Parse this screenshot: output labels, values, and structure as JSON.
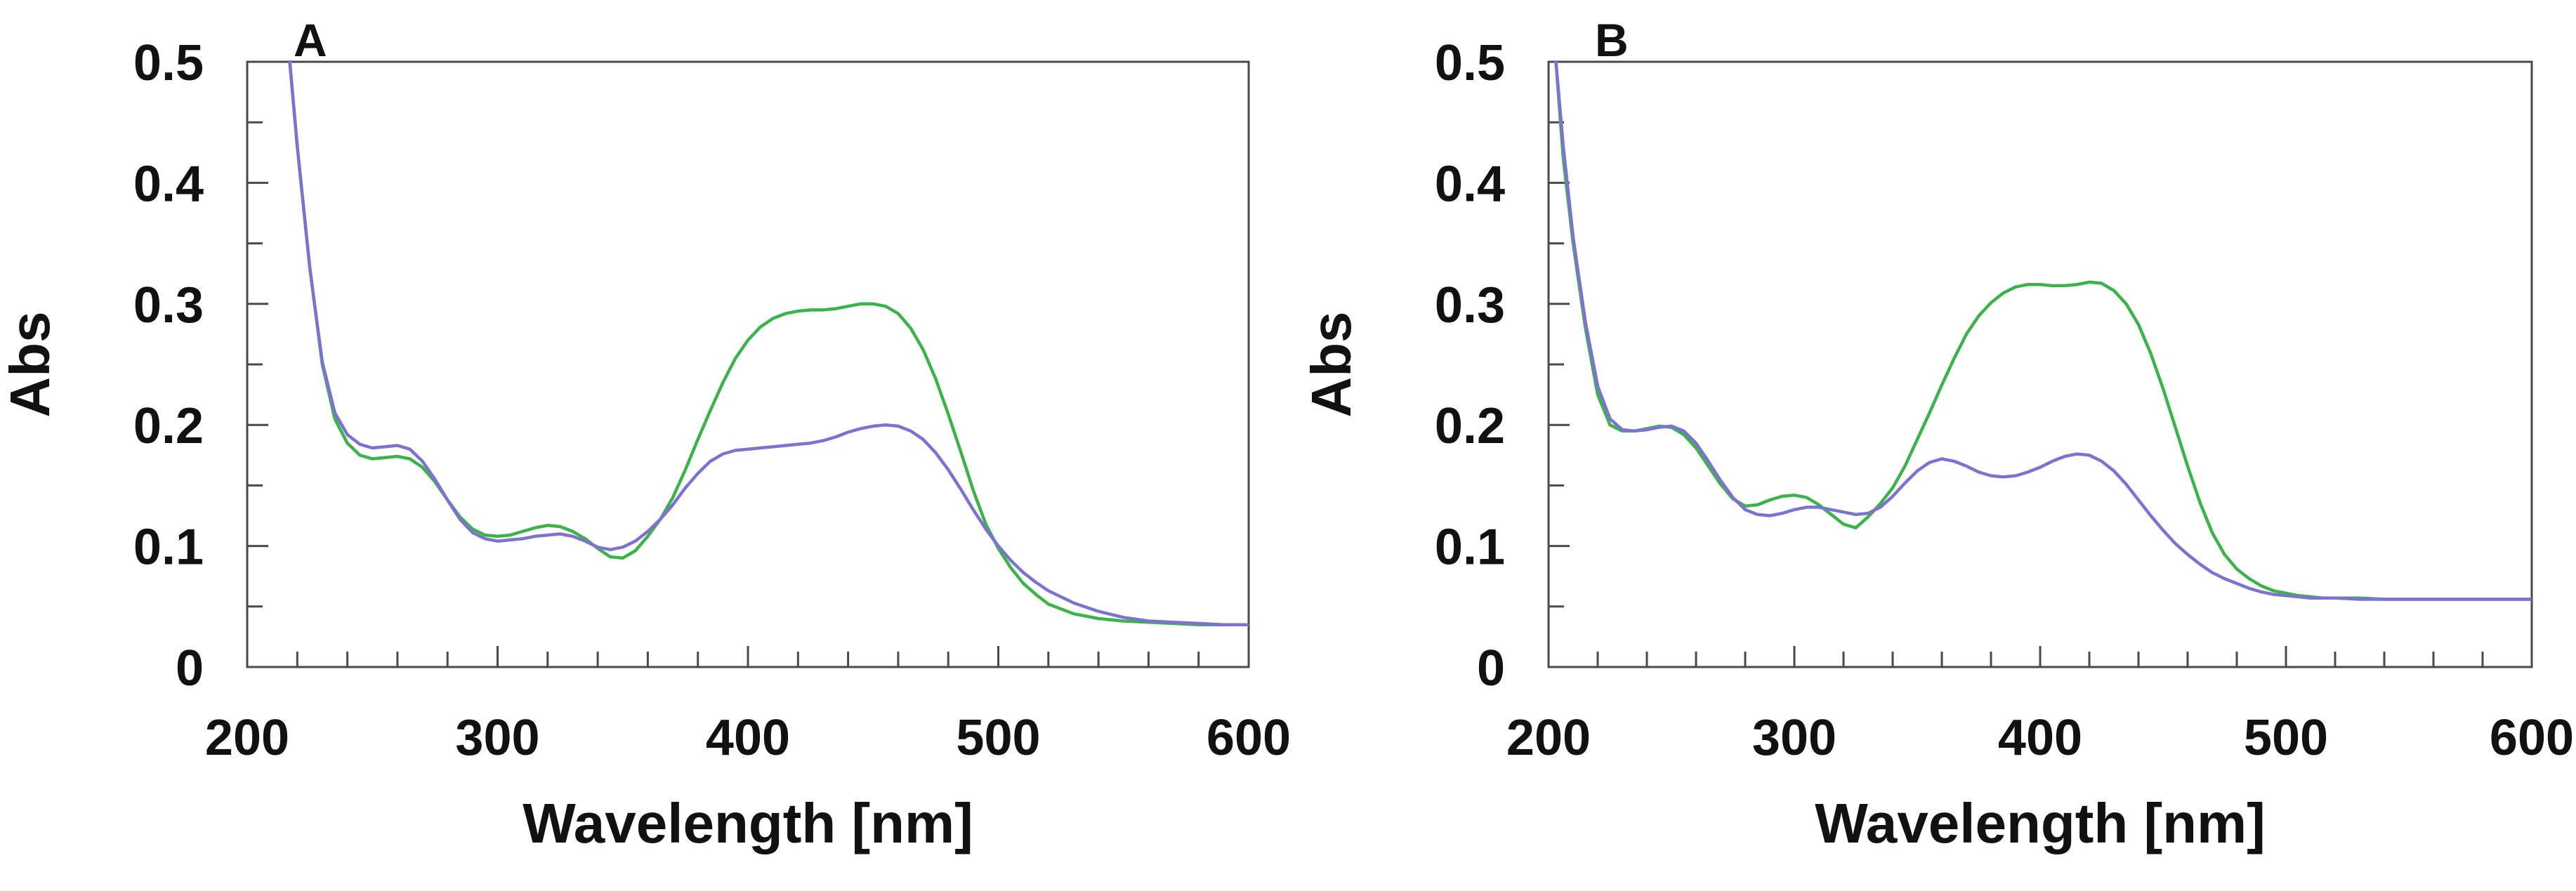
{
  "chart_data": [
    {
      "panel": "A",
      "type": "line",
      "xlabel": "Wavelength [nm]",
      "ylabel": "Abs",
      "xlim": [
        200,
        600
      ],
      "ylim": [
        0,
        0.5
      ],
      "xticks": [
        200,
        300,
        400,
        500,
        600
      ],
      "xtick_labels": [
        "200",
        "300",
        "400",
        "500",
        "600"
      ],
      "yticks": [
        0,
        0.1,
        0.2,
        0.3,
        0.4,
        0.5
      ],
      "ytick_labels": [
        "0",
        "0.1",
        "0.2",
        "0.3",
        "0.4",
        "0.5"
      ],
      "series": [
        {
          "name": "green",
          "color": "#3cb24a",
          "x": [
            217,
            220,
            225,
            230,
            235,
            240,
            245,
            250,
            255,
            260,
            265,
            270,
            275,
            280,
            285,
            290,
            295,
            300,
            305,
            310,
            315,
            320,
            325,
            330,
            335,
            340,
            345,
            350,
            355,
            360,
            365,
            370,
            375,
            380,
            385,
            390,
            395,
            400,
            405,
            410,
            415,
            420,
            425,
            430,
            435,
            440,
            445,
            450,
            455,
            460,
            465,
            470,
            475,
            480,
            485,
            490,
            495,
            500,
            505,
            510,
            515,
            520,
            530,
            540,
            550,
            560,
            570,
            580,
            590,
            600
          ],
          "y": [
            0.5,
            0.43,
            0.33,
            0.25,
            0.205,
            0.185,
            0.175,
            0.172,
            0.173,
            0.174,
            0.172,
            0.165,
            0.153,
            0.138,
            0.124,
            0.114,
            0.109,
            0.108,
            0.109,
            0.112,
            0.115,
            0.117,
            0.116,
            0.112,
            0.106,
            0.098,
            0.091,
            0.09,
            0.096,
            0.108,
            0.122,
            0.14,
            0.163,
            0.188,
            0.212,
            0.235,
            0.255,
            0.27,
            0.281,
            0.288,
            0.292,
            0.294,
            0.295,
            0.295,
            0.296,
            0.298,
            0.3,
            0.3,
            0.298,
            0.292,
            0.28,
            0.262,
            0.238,
            0.209,
            0.178,
            0.146,
            0.118,
            0.098,
            0.082,
            0.069,
            0.06,
            0.052,
            0.044,
            0.04,
            0.038,
            0.037,
            0.036,
            0.035,
            0.035,
            0.035
          ]
        },
        {
          "name": "blue",
          "color": "#7b73cf",
          "x": [
            217,
            220,
            225,
            230,
            235,
            240,
            245,
            250,
            255,
            260,
            265,
            270,
            275,
            280,
            285,
            290,
            295,
            300,
            305,
            310,
            315,
            320,
            325,
            330,
            335,
            340,
            345,
            350,
            355,
            360,
            365,
            370,
            375,
            380,
            385,
            390,
            395,
            400,
            405,
            410,
            415,
            420,
            425,
            430,
            435,
            440,
            445,
            450,
            455,
            460,
            465,
            470,
            475,
            480,
            485,
            490,
            495,
            500,
            505,
            510,
            515,
            520,
            530,
            540,
            550,
            560,
            570,
            580,
            590,
            600
          ],
          "y": [
            0.5,
            0.43,
            0.33,
            0.252,
            0.21,
            0.192,
            0.184,
            0.181,
            0.182,
            0.183,
            0.18,
            0.17,
            0.155,
            0.138,
            0.122,
            0.111,
            0.106,
            0.104,
            0.105,
            0.106,
            0.108,
            0.109,
            0.11,
            0.108,
            0.104,
            0.099,
            0.097,
            0.099,
            0.104,
            0.112,
            0.122,
            0.134,
            0.148,
            0.16,
            0.17,
            0.176,
            0.179,
            0.18,
            0.181,
            0.182,
            0.183,
            0.184,
            0.185,
            0.187,
            0.19,
            0.194,
            0.197,
            0.199,
            0.2,
            0.199,
            0.195,
            0.188,
            0.177,
            0.163,
            0.147,
            0.13,
            0.114,
            0.1,
            0.088,
            0.078,
            0.07,
            0.063,
            0.053,
            0.046,
            0.041,
            0.038,
            0.037,
            0.036,
            0.035,
            0.035
          ]
        }
      ]
    },
    {
      "panel": "B",
      "type": "line",
      "xlabel": "Wavelength [nm]",
      "ylabel": "Abs",
      "xlim": [
        200,
        600
      ],
      "ylim": [
        0,
        0.5
      ],
      "xticks": [
        200,
        300,
        400,
        500,
        600
      ],
      "xtick_labels": [
        "200",
        "300",
        "400",
        "500",
        "600"
      ],
      "yticks": [
        0,
        0.1,
        0.2,
        0.3,
        0.4,
        0.5
      ],
      "ytick_labels": [
        "0",
        "0.1",
        "0.2",
        "0.3",
        "0.4",
        "0.5"
      ],
      "series": [
        {
          "name": "green",
          "color": "#3cb24a",
          "x": [
            203,
            206,
            210,
            215,
            220,
            225,
            230,
            235,
            240,
            245,
            250,
            255,
            260,
            265,
            270,
            275,
            280,
            285,
            290,
            295,
            300,
            305,
            310,
            315,
            320,
            325,
            330,
            335,
            340,
            345,
            350,
            355,
            360,
            365,
            370,
            375,
            380,
            385,
            390,
            395,
            400,
            405,
            410,
            415,
            420,
            425,
            430,
            435,
            440,
            445,
            450,
            455,
            460,
            465,
            470,
            475,
            480,
            485,
            490,
            495,
            500,
            505,
            510,
            515,
            520,
            530,
            540,
            550,
            560,
            570,
            580,
            590,
            600
          ],
          "y": [
            0.5,
            0.42,
            0.35,
            0.28,
            0.225,
            0.2,
            0.195,
            0.195,
            0.197,
            0.199,
            0.198,
            0.192,
            0.181,
            0.166,
            0.151,
            0.139,
            0.133,
            0.134,
            0.138,
            0.141,
            0.142,
            0.14,
            0.134,
            0.126,
            0.118,
            0.115,
            0.124,
            0.135,
            0.148,
            0.166,
            0.188,
            0.21,
            0.233,
            0.255,
            0.275,
            0.29,
            0.301,
            0.309,
            0.314,
            0.316,
            0.316,
            0.315,
            0.315,
            0.316,
            0.318,
            0.317,
            0.311,
            0.3,
            0.283,
            0.259,
            0.23,
            0.198,
            0.166,
            0.136,
            0.111,
            0.093,
            0.081,
            0.073,
            0.067,
            0.063,
            0.061,
            0.059,
            0.058,
            0.057,
            0.057,
            0.057,
            0.056,
            0.056,
            0.056,
            0.056,
            0.056,
            0.056,
            0.056
          ]
        },
        {
          "name": "blue",
          "color": "#7b73cf",
          "x": [
            203,
            206,
            210,
            215,
            220,
            225,
            230,
            235,
            240,
            245,
            250,
            255,
            260,
            265,
            270,
            275,
            280,
            285,
            290,
            295,
            300,
            305,
            310,
            315,
            320,
            325,
            330,
            335,
            340,
            345,
            350,
            355,
            360,
            365,
            370,
            375,
            380,
            385,
            390,
            395,
            400,
            405,
            410,
            415,
            420,
            425,
            430,
            435,
            440,
            445,
            450,
            455,
            460,
            465,
            470,
            475,
            480,
            485,
            490,
            495,
            500,
            505,
            510,
            515,
            520,
            530,
            540,
            550,
            560,
            570,
            580,
            590,
            600
          ],
          "y": [
            0.5,
            0.43,
            0.355,
            0.285,
            0.232,
            0.205,
            0.196,
            0.195,
            0.196,
            0.198,
            0.199,
            0.195,
            0.185,
            0.17,
            0.154,
            0.14,
            0.13,
            0.126,
            0.125,
            0.127,
            0.13,
            0.132,
            0.132,
            0.13,
            0.128,
            0.126,
            0.127,
            0.132,
            0.141,
            0.152,
            0.162,
            0.169,
            0.172,
            0.17,
            0.166,
            0.161,
            0.158,
            0.157,
            0.158,
            0.161,
            0.165,
            0.17,
            0.174,
            0.176,
            0.175,
            0.17,
            0.162,
            0.151,
            0.138,
            0.125,
            0.113,
            0.102,
            0.093,
            0.085,
            0.078,
            0.073,
            0.069,
            0.065,
            0.062,
            0.06,
            0.059,
            0.058,
            0.057,
            0.057,
            0.057,
            0.056,
            0.056,
            0.056,
            0.056,
            0.056,
            0.056,
            0.056,
            0.056
          ]
        }
      ]
    }
  ]
}
